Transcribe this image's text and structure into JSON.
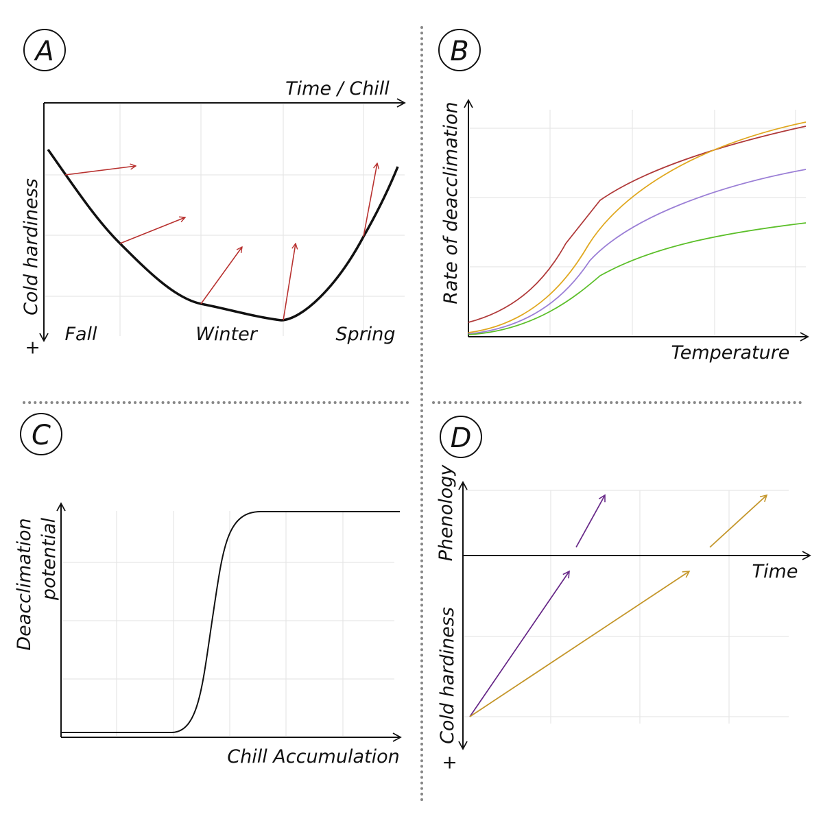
{
  "panels": {
    "a": {
      "letter": "A",
      "x_label": "Time / Chill",
      "y_label": "Cold hardiness",
      "plus": "+",
      "seasons": [
        "Fall",
        "Winter",
        "Spring"
      ],
      "curve_color": "#111111",
      "arrow_color": "#b8312f"
    },
    "b": {
      "letter": "B",
      "x_label": "Temperature",
      "y_label": "Rate of deacclimation",
      "series_colors": [
        "#b03a3a",
        "#e0a820",
        "#9b7fd6",
        "#5cbf2a"
      ]
    },
    "c": {
      "letter": "C",
      "x_label": "Chill Accumulation",
      "y_label_line1": "Deacclimation",
      "y_label_line2": "potential",
      "curve_color": "#111111"
    },
    "d": {
      "letter": "D",
      "x_label": "Time",
      "y_label_top": "Phenology",
      "y_label_bottom": "Cold hardiness",
      "plus": "+",
      "arrow_colors": [
        "#6a2c8a",
        "#c4962a"
      ]
    }
  }
}
